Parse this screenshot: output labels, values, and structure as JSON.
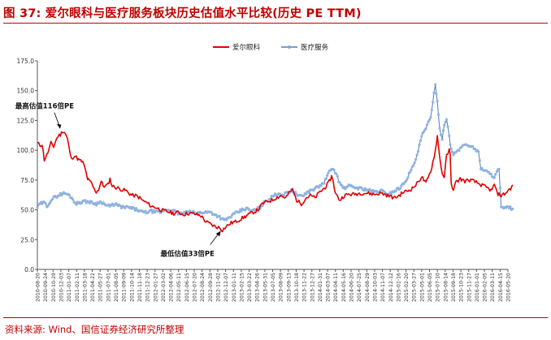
{
  "figure": {
    "title": "图 37:  爱尔眼科与医疗服务板块历史估值水平比较(历史 PE TTM)",
    "source": "资料来源:  Wind、国信证券经济研究所整理"
  },
  "chart_data": {
    "type": "line",
    "title": "",
    "xlabel": "",
    "ylabel": "",
    "ylim": [
      0,
      175
    ],
    "y_ticks": [
      "0.0",
      "25.0",
      "50.0",
      "75.0",
      "100.0",
      "125.0",
      "150.0",
      "175.0"
    ],
    "grid": "none",
    "legend_position": "top-right",
    "x_ticks": [
      "2010-08-20",
      "2010-10-20",
      "2010-12-20",
      "2011-02-20",
      "2011-04-20",
      "2011-06-20",
      "2011-08-20",
      "2011-10-20",
      "2011-12-20",
      "2012-02-20",
      "2012-04-20",
      "2012-06-20",
      "2012-08-20",
      "2012-10-20",
      "2012-12-20",
      "2013-02-20",
      "2013-04-20",
      "2013-06-20",
      "2013-08-20",
      "2013-10-20",
      "2013-12-20",
      "2014-02-20",
      "2014-04-20",
      "2014-06-20",
      "2014-08-20",
      "2014-10-20",
      "2014-12-20",
      "2015-02-20",
      "2015-04-20",
      "2015-06-20",
      "2015-08-20",
      "2015-10-20",
      "2015-12-20",
      "2016-02-20",
      "2016-04-20",
      "2016-06-20"
    ],
    "x_tick_labels": [
      "2010-08-20",
      "2010-09-24",
      "2010-10-29",
      "2010-12-03",
      "2011-01-07",
      "2011-02-11",
      "2011-03-18",
      "2011-04-22",
      "2011-05-27",
      "2011-07-01",
      "2011-08-05",
      "2011-09-09",
      "2011-10-14",
      "2011-11-18",
      "2011-12-23",
      "2012-01-27",
      "2012-03-02",
      "2012-04-06",
      "2012-05-11",
      "2012-06-15",
      "2012-07-20",
      "2012-08-24",
      "2012-09-28",
      "2012-11-02",
      "2012-12-07",
      "2013-01-11",
      "2013-02-15",
      "2013-03-22",
      "2013-04-26",
      "2013-05-31",
      "2013-07-05",
      "2013-08-09",
      "2013-09-13",
      "2013-10-18",
      "2013-11-22",
      "2013-12-27",
      "2014-01-31",
      "2014-03-07",
      "2014-04-11",
      "2014-05-16",
      "2014-06-20",
      "2014-07-25",
      "2014-08-29",
      "2014-10-03",
      "2014-11-07",
      "2014-12-12",
      "2015-01-16",
      "2015-02-20",
      "2015-03-27",
      "2015-05-01",
      "2015-06-05",
      "2015-07-10",
      "2015-08-14",
      "2015-09-18",
      "2015-10-23",
      "2015-11-27",
      "2016-01-01",
      "2016-02-05",
      "2016-03-11",
      "2016-04-15",
      "2016-05-20"
    ],
    "series": [
      {
        "name": "爱尔眼科",
        "color": "#e00000",
        "marker": "none",
        "points": [
          [
            "2010-08-20",
            106
          ],
          [
            "2010-09-01",
            104
          ],
          [
            "2010-09-10",
            105
          ],
          [
            "2010-09-20",
            92
          ],
          [
            "2010-10-01",
            96
          ],
          [
            "2010-10-10",
            100
          ],
          [
            "2010-10-20",
            106
          ],
          [
            "2010-11-01",
            103
          ],
          [
            "2010-11-10",
            108
          ],
          [
            "2010-11-20",
            112
          ],
          [
            "2010-12-01",
            113
          ],
          [
            "2010-12-10",
            116
          ],
          [
            "2010-12-20",
            115
          ],
          [
            "2011-01-01",
            110
          ],
          [
            "2011-01-10",
            100
          ],
          [
            "2011-01-20",
            92
          ],
          [
            "2011-02-01",
            96
          ],
          [
            "2011-02-10",
            94
          ],
          [
            "2011-02-20",
            92
          ],
          [
            "2011-03-10",
            90
          ],
          [
            "2011-03-20",
            85
          ],
          [
            "2011-04-01",
            76
          ],
          [
            "2011-04-10",
            74
          ],
          [
            "2011-04-20",
            72
          ],
          [
            "2011-05-01",
            67
          ],
          [
            "2011-05-10",
            65
          ],
          [
            "2011-05-20",
            67
          ],
          [
            "2011-06-01",
            74
          ],
          [
            "2011-06-10",
            70
          ],
          [
            "2011-06-20",
            70
          ],
          [
            "2011-07-01",
            71
          ],
          [
            "2011-07-10",
            76
          ],
          [
            "2011-07-20",
            70
          ],
          [
            "2011-08-01",
            69
          ],
          [
            "2011-08-20",
            68
          ],
          [
            "2011-09-01",
            67
          ],
          [
            "2011-09-20",
            66
          ],
          [
            "2011-10-01",
            64
          ],
          [
            "2011-10-20",
            62
          ],
          [
            "2011-11-01",
            62
          ],
          [
            "2011-11-20",
            60
          ],
          [
            "2011-12-01",
            58
          ],
          [
            "2011-12-20",
            56
          ],
          [
            "2012-01-10",
            53
          ],
          [
            "2012-02-01",
            52
          ],
          [
            "2012-02-20",
            50
          ],
          [
            "2012-03-10",
            49
          ],
          [
            "2012-04-01",
            48
          ],
          [
            "2012-04-20",
            47
          ],
          [
            "2012-05-10",
            48
          ],
          [
            "2012-06-01",
            46
          ],
          [
            "2012-06-20",
            47
          ],
          [
            "2012-07-10",
            47
          ],
          [
            "2012-08-01",
            46
          ],
          [
            "2012-08-20",
            45
          ],
          [
            "2012-09-10",
            40
          ],
          [
            "2012-10-01",
            38
          ],
          [
            "2012-10-20",
            36
          ],
          [
            "2012-11-10",
            35
          ],
          [
            "2012-11-23",
            33
          ],
          [
            "2012-12-10",
            36
          ],
          [
            "2013-01-01",
            39
          ],
          [
            "2013-01-20",
            40
          ],
          [
            "2013-02-10",
            42
          ],
          [
            "2013-03-01",
            44
          ],
          [
            "2013-03-20",
            46
          ],
          [
            "2013-04-10",
            48
          ],
          [
            "2013-05-01",
            50
          ],
          [
            "2013-05-20",
            55
          ],
          [
            "2013-06-10",
            57
          ],
          [
            "2013-07-01",
            58
          ],
          [
            "2013-07-20",
            60
          ],
          [
            "2013-08-10",
            62
          ],
          [
            "2013-09-01",
            60
          ],
          [
            "2013-09-20",
            65
          ],
          [
            "2013-10-01",
            67
          ],
          [
            "2013-10-20",
            58
          ],
          [
            "2013-11-10",
            55
          ],
          [
            "2013-12-01",
            60
          ],
          [
            "2013-12-20",
            62
          ],
          [
            "2014-01-10",
            60
          ],
          [
            "2014-02-01",
            65
          ],
          [
            "2014-02-20",
            68
          ],
          [
            "2014-03-10",
            72
          ],
          [
            "2014-03-25",
            78
          ],
          [
            "2014-04-01",
            75
          ],
          [
            "2014-04-10",
            64
          ],
          [
            "2014-05-01",
            58
          ],
          [
            "2014-05-20",
            62
          ],
          [
            "2014-06-10",
            63
          ],
          [
            "2014-07-01",
            63
          ],
          [
            "2014-08-01",
            64
          ],
          [
            "2014-09-01",
            64
          ],
          [
            "2014-10-01",
            63
          ],
          [
            "2014-11-01",
            64
          ],
          [
            "2014-12-01",
            62
          ],
          [
            "2015-01-01",
            60
          ],
          [
            "2015-01-20",
            62
          ],
          [
            "2015-02-10",
            65
          ],
          [
            "2015-03-01",
            66
          ],
          [
            "2015-03-20",
            68
          ],
          [
            "2015-04-10",
            72
          ],
          [
            "2015-05-01",
            78
          ],
          [
            "2015-05-20",
            72
          ],
          [
            "2015-06-10",
            82
          ],
          [
            "2015-06-20",
            90
          ],
          [
            "2015-07-01",
            100
          ],
          [
            "2015-07-10",
            112
          ],
          [
            "2015-07-20",
            95
          ],
          [
            "2015-08-01",
            80
          ],
          [
            "2015-08-10",
            78
          ],
          [
            "2015-08-20",
            95
          ],
          [
            "2015-09-01",
            100
          ],
          [
            "2015-09-05",
            96
          ],
          [
            "2015-09-10",
            72
          ],
          [
            "2015-09-20",
            67
          ],
          [
            "2015-10-01",
            73
          ],
          [
            "2015-10-20",
            76
          ],
          [
            "2015-11-10",
            74
          ],
          [
            "2015-12-01",
            75
          ],
          [
            "2015-12-20",
            74
          ],
          [
            "2016-01-10",
            72
          ],
          [
            "2016-02-01",
            70
          ],
          [
            "2016-02-20",
            68
          ],
          [
            "2016-03-10",
            66
          ],
          [
            "2016-03-20",
            72
          ],
          [
            "2016-04-01",
            64
          ],
          [
            "2016-04-20",
            62
          ],
          [
            "2016-05-10",
            64
          ],
          [
            "2016-05-20",
            66
          ],
          [
            "2016-06-01",
            68
          ],
          [
            "2016-06-10",
            70
          ]
        ]
      },
      {
        "name": "医疗服务",
        "color": "#4a7fc0",
        "marker": "dot",
        "points": [
          [
            "2010-08-20",
            52
          ],
          [
            "2010-09-01",
            55
          ],
          [
            "2010-09-20",
            56
          ],
          [
            "2010-10-01",
            53
          ],
          [
            "2010-10-20",
            58
          ],
          [
            "2010-11-01",
            60
          ],
          [
            "2010-11-20",
            62
          ],
          [
            "2010-12-01",
            63
          ],
          [
            "2010-12-20",
            64
          ],
          [
            "2011-01-10",
            62
          ],
          [
            "2011-01-20",
            60
          ],
          [
            "2011-02-10",
            55
          ],
          [
            "2011-02-20",
            56
          ],
          [
            "2011-03-10",
            57
          ],
          [
            "2011-04-01",
            57
          ],
          [
            "2011-04-20",
            56
          ],
          [
            "2011-05-10",
            55
          ],
          [
            "2011-06-01",
            57
          ],
          [
            "2011-06-20",
            54
          ],
          [
            "2011-07-10",
            53
          ],
          [
            "2011-08-01",
            55
          ],
          [
            "2011-08-20",
            53
          ],
          [
            "2011-09-10",
            52
          ],
          [
            "2011-10-01",
            52
          ],
          [
            "2011-10-20",
            51
          ],
          [
            "2011-11-10",
            50
          ],
          [
            "2011-12-01",
            48
          ],
          [
            "2011-12-20",
            48
          ],
          [
            "2012-01-10",
            49
          ],
          [
            "2012-02-01",
            48
          ],
          [
            "2012-02-20",
            48
          ],
          [
            "2012-03-10",
            50
          ],
          [
            "2012-04-01",
            50
          ],
          [
            "2012-04-20",
            49
          ],
          [
            "2012-05-10",
            47
          ],
          [
            "2012-06-01",
            47
          ],
          [
            "2012-06-20",
            48
          ],
          [
            "2012-07-10",
            48
          ],
          [
            "2012-08-01",
            47
          ],
          [
            "2012-08-20",
            48
          ],
          [
            "2012-09-10",
            48
          ],
          [
            "2012-10-01",
            48
          ],
          [
            "2012-10-20",
            46
          ],
          [
            "2012-11-10",
            44
          ],
          [
            "2012-12-01",
            41
          ],
          [
            "2012-12-20",
            43
          ],
          [
            "2013-01-10",
            46
          ],
          [
            "2013-02-01",
            48
          ],
          [
            "2013-02-20",
            50
          ],
          [
            "2013-03-10",
            51
          ],
          [
            "2013-04-01",
            49
          ],
          [
            "2013-04-20",
            50
          ],
          [
            "2013-05-10",
            52
          ],
          [
            "2013-06-01",
            57
          ],
          [
            "2013-06-20",
            59
          ],
          [
            "2013-07-10",
            62
          ],
          [
            "2013-08-01",
            64
          ],
          [
            "2013-08-20",
            62
          ],
          [
            "2013-09-10",
            65
          ],
          [
            "2013-10-01",
            66
          ],
          [
            "2013-10-20",
            63
          ],
          [
            "2013-11-10",
            61
          ],
          [
            "2013-12-01",
            64
          ],
          [
            "2013-12-20",
            66
          ],
          [
            "2014-01-10",
            68
          ],
          [
            "2014-02-01",
            70
          ],
          [
            "2014-02-20",
            73
          ],
          [
            "2014-03-10",
            80
          ],
          [
            "2014-03-25",
            85
          ],
          [
            "2014-04-10",
            82
          ],
          [
            "2014-05-01",
            72
          ],
          [
            "2014-05-20",
            68
          ],
          [
            "2014-06-10",
            70
          ],
          [
            "2014-07-01",
            69
          ],
          [
            "2014-08-01",
            68
          ],
          [
            "2014-09-01",
            67
          ],
          [
            "2014-10-01",
            65
          ],
          [
            "2014-11-01",
            66
          ],
          [
            "2014-12-01",
            63
          ],
          [
            "2015-01-01",
            66
          ],
          [
            "2015-01-20",
            68
          ],
          [
            "2015-02-10",
            72
          ],
          [
            "2015-03-01",
            78
          ],
          [
            "2015-03-20",
            85
          ],
          [
            "2015-04-10",
            95
          ],
          [
            "2015-05-01",
            112
          ],
          [
            "2015-05-20",
            118
          ],
          [
            "2015-06-10",
            128
          ],
          [
            "2015-06-25",
            148
          ],
          [
            "2015-07-01",
            154
          ],
          [
            "2015-07-10",
            140
          ],
          [
            "2015-07-20",
            118
          ],
          [
            "2015-08-01",
            110
          ],
          [
            "2015-08-10",
            122
          ],
          [
            "2015-08-20",
            127
          ],
          [
            "2015-09-01",
            112
          ],
          [
            "2015-09-10",
            100
          ],
          [
            "2015-09-20",
            97
          ],
          [
            "2015-10-10",
            99
          ],
          [
            "2015-10-20",
            102
          ],
          [
            "2015-11-10",
            105
          ],
          [
            "2015-12-01",
            104
          ],
          [
            "2015-12-20",
            102
          ],
          [
            "2016-01-10",
            98
          ],
          [
            "2016-01-20",
            85
          ],
          [
            "2016-02-10",
            83
          ],
          [
            "2016-03-01",
            80
          ],
          [
            "2016-03-20",
            78
          ],
          [
            "2016-04-01",
            82
          ],
          [
            "2016-04-10",
            84
          ],
          [
            "2016-04-20",
            52
          ],
          [
            "2016-05-01",
            51
          ],
          [
            "2016-05-20",
            52
          ],
          [
            "2016-06-10",
            51
          ]
        ]
      }
    ],
    "annotations": [
      {
        "text": "最高估值116倍PE",
        "x": "2010-12-10",
        "y": 116
      },
      {
        "text": "最低估值33倍PE",
        "x": "2012-11-23",
        "y": 33
      }
    ]
  }
}
